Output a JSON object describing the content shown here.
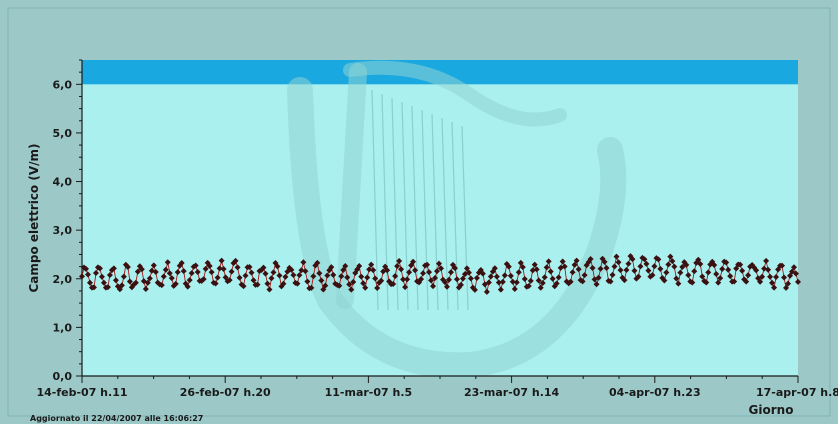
{
  "chart_data": {
    "type": "scatter",
    "title": "",
    "xlabel": "Giorno",
    "ylabel": "Campo elettrico (V/m)",
    "y_ticks": [
      "0,0",
      "1,0",
      "2,0",
      "3,0",
      "4,0",
      "5,0",
      "6,0"
    ],
    "x_ticks": [
      "14-feb-07 h.11",
      "26-feb-07 h.20",
      "11-mar-07 h.5",
      "23-mar-07 h.14",
      "04-apr-07 h.23",
      "17-apr-07 h.8"
    ],
    "ylim": [
      0,
      6.5
    ],
    "xlim": [
      0,
      5
    ],
    "limit_band": {
      "from": 6.0,
      "to": 6.5,
      "color": "#1aa8e0"
    },
    "grid": false,
    "series": [
      {
        "marker_color": "#3a1010",
        "line_color": "#a01818",
        "sample_count": 360,
        "baseline": [
          [
            0.0,
            2.05
          ],
          [
            0.25,
            2.0
          ],
          [
            0.5,
            2.05
          ],
          [
            0.75,
            2.1
          ],
          [
            1.0,
            2.12
          ],
          [
            1.25,
            2.05
          ],
          [
            1.5,
            2.08
          ],
          [
            1.75,
            2.05
          ],
          [
            2.0,
            2.05
          ],
          [
            2.25,
            2.1
          ],
          [
            2.5,
            2.05
          ],
          [
            2.75,
            2.0
          ],
          [
            3.0,
            2.05
          ],
          [
            3.25,
            2.08
          ],
          [
            3.5,
            2.15
          ],
          [
            3.75,
            2.18
          ],
          [
            3.9,
            2.25
          ],
          [
            4.0,
            2.22
          ],
          [
            4.25,
            2.15
          ],
          [
            4.5,
            2.18
          ],
          [
            4.75,
            2.1
          ],
          [
            5.0,
            2.05
          ]
        ],
        "daily_swing": 0.22
      }
    ]
  },
  "colors": {
    "outer_background": "#9cc9c8",
    "plot_background": "#aaf0ef",
    "watermark": "#8fd4d3",
    "axis": "#1a1a1a"
  },
  "footer": {
    "updated_text": "Aggiornato il 22/04/2007 alle 16:06:27"
  }
}
